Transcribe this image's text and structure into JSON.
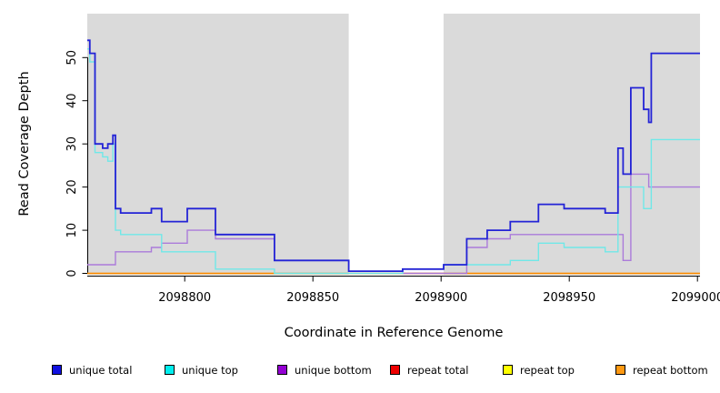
{
  "chart_data": {
    "type": "line",
    "subtype": "step",
    "title": "",
    "xlabel": "Coordinate in Reference Genome",
    "ylabel": "Read Coverage Depth",
    "xlim": [
      2098762,
      2099001
    ],
    "ylim": [
      0,
      60
    ],
    "x_ticks": [
      "2098800",
      "2098850",
      "2098900",
      "2098950",
      "2099000"
    ],
    "x_tick_values": [
      2098800,
      2098850,
      2098900,
      2098950,
      2099000
    ],
    "y_ticks": [
      0,
      10,
      20,
      30,
      40,
      50
    ],
    "grid": "off",
    "plot_bg": "#DADADA",
    "masked_region": {
      "start": 2098864,
      "end": 2098901,
      "color": "#FFFFFF"
    },
    "series": [
      {
        "key": "repeat-total",
        "name": "repeat total",
        "line_color": "#E05C74",
        "points": [
          [
            2098762,
            0
          ],
          [
            2099001,
            0
          ]
        ]
      },
      {
        "key": "repeat-top",
        "name": "repeat top",
        "line_color": "#EDED2E",
        "points": [
          [
            2098762,
            0
          ],
          [
            2099001,
            0
          ]
        ]
      },
      {
        "key": "repeat-bottom",
        "name": "repeat bottom",
        "line_color": "#FF8C00",
        "points": [
          [
            2098762,
            0
          ],
          [
            2099001,
            0
          ]
        ]
      },
      {
        "key": "unique-bottom",
        "name": "unique bottom",
        "line_color": "#AB7BDA",
        "points": [
          [
            2098762,
            2
          ],
          [
            2098773,
            5
          ],
          [
            2098787,
            6
          ],
          [
            2098791,
            7
          ],
          [
            2098801,
            10
          ],
          [
            2098812,
            8
          ],
          [
            2098835,
            3
          ],
          [
            2098864,
            0.5
          ],
          [
            2098885,
            0
          ],
          [
            2098910,
            6
          ],
          [
            2098918,
            8
          ],
          [
            2098927,
            9
          ],
          [
            2098971,
            3
          ],
          [
            2098974,
            23
          ],
          [
            2098981,
            20
          ],
          [
            2099001,
            20
          ]
        ]
      },
      {
        "key": "unique-top",
        "name": "unique top",
        "line_color": "#70E8E8",
        "points": [
          [
            2098762,
            52
          ],
          [
            2098763,
            49
          ],
          [
            2098765,
            28
          ],
          [
            2098768,
            27
          ],
          [
            2098770,
            26
          ],
          [
            2098772,
            30
          ],
          [
            2098773,
            10
          ],
          [
            2098775,
            9
          ],
          [
            2098791,
            5
          ],
          [
            2098812,
            1
          ],
          [
            2098835,
            0
          ],
          [
            2098885,
            1
          ],
          [
            2098901,
            2
          ],
          [
            2098927,
            3
          ],
          [
            2098938,
            7
          ],
          [
            2098948,
            6
          ],
          [
            2098964,
            5
          ],
          [
            2098969,
            20
          ],
          [
            2098979,
            15
          ],
          [
            2098982,
            31
          ],
          [
            2099001,
            31
          ]
        ]
      },
      {
        "key": "unique-total",
        "name": "unique total",
        "line_color": "#2323D6",
        "points": [
          [
            2098762,
            54
          ],
          [
            2098763,
            51
          ],
          [
            2098765,
            30
          ],
          [
            2098768,
            29
          ],
          [
            2098770,
            30
          ],
          [
            2098772,
            32
          ],
          [
            2098773,
            15
          ],
          [
            2098775,
            14
          ],
          [
            2098787,
            15
          ],
          [
            2098791,
            12
          ],
          [
            2098801,
            15
          ],
          [
            2098812,
            9
          ],
          [
            2098835,
            3
          ],
          [
            2098864,
            0.5
          ],
          [
            2098885,
            1
          ],
          [
            2098901,
            2
          ],
          [
            2098910,
            8
          ],
          [
            2098918,
            10
          ],
          [
            2098927,
            12
          ],
          [
            2098938,
            16
          ],
          [
            2098948,
            15
          ],
          [
            2098964,
            14
          ],
          [
            2098969,
            29
          ],
          [
            2098971,
            23
          ],
          [
            2098974,
            43
          ],
          [
            2098979,
            38
          ],
          [
            2098981,
            35
          ],
          [
            2098982,
            51
          ],
          [
            2099001,
            51
          ]
        ]
      }
    ]
  },
  "legend": {
    "items": [
      {
        "key": "unique-total",
        "label": "unique total",
        "color": "#1010E0"
      },
      {
        "key": "unique-top",
        "label": "unique top",
        "color": "#00EEEE"
      },
      {
        "key": "unique-bottom",
        "label": "unique bottom",
        "color": "#9400D3"
      },
      {
        "key": "repeat-total",
        "label": "repeat total",
        "color": "#EE0000"
      },
      {
        "key": "repeat-top",
        "label": "repeat top",
        "color": "#FFFF00"
      },
      {
        "key": "repeat-bottom",
        "label": "repeat bottom",
        "color": "#FF9912"
      }
    ]
  }
}
